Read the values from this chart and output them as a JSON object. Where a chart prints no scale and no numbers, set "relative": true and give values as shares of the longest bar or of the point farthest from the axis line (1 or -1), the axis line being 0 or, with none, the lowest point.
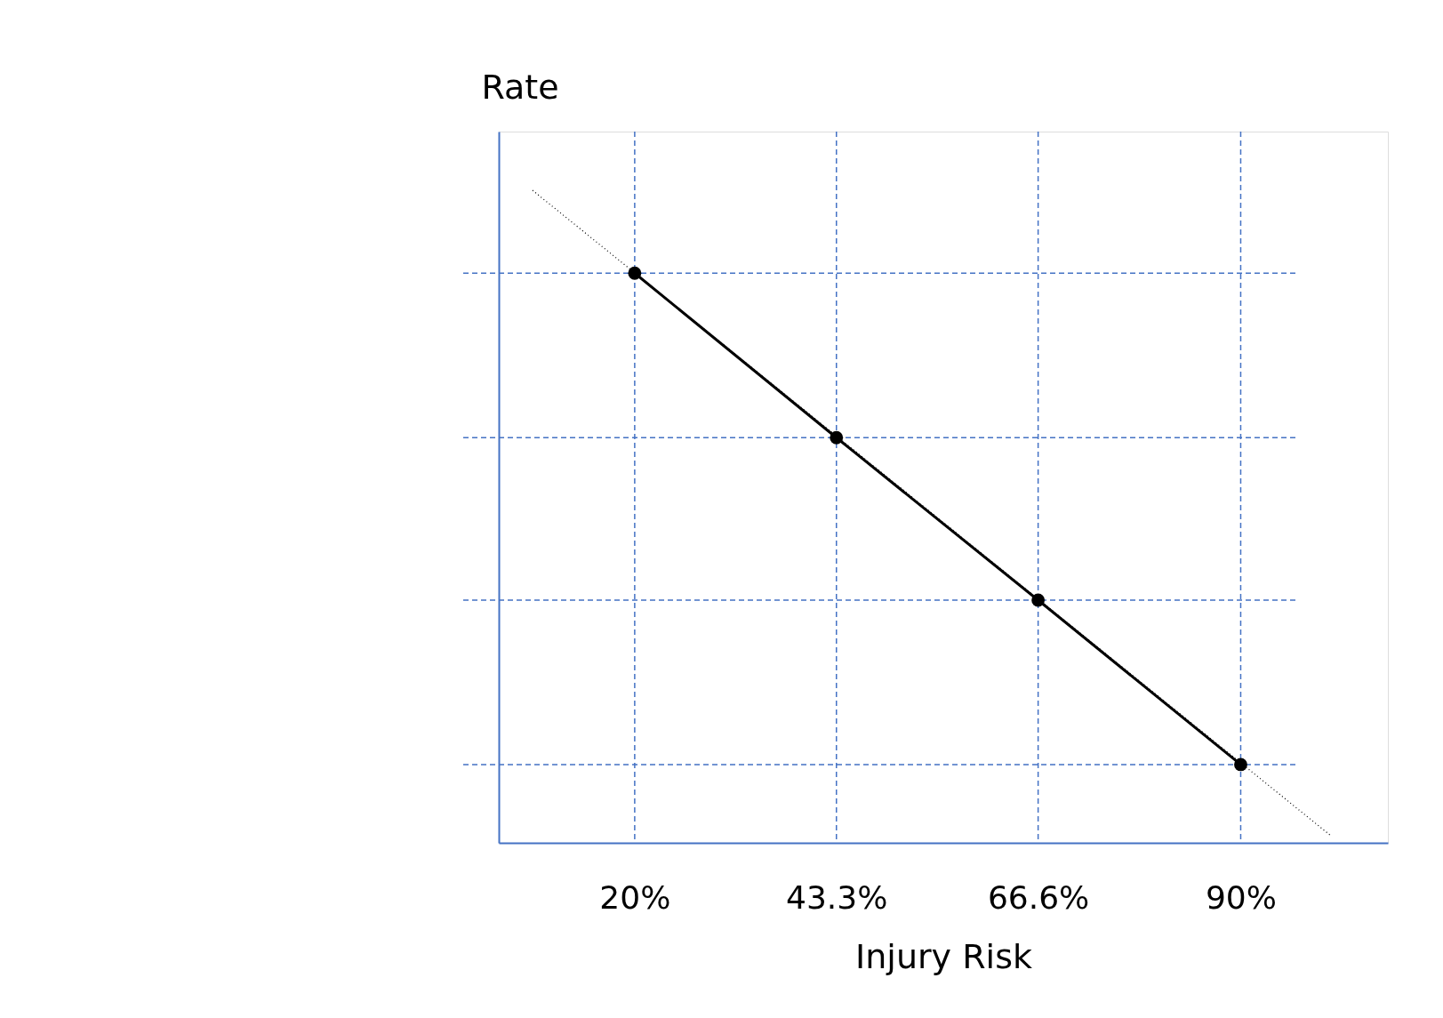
{
  "chart_data": {
    "type": "line",
    "xlabel": "Injury Risk",
    "ylabel": "Rate",
    "relative": true,
    "grid": false,
    "marker": "circle",
    "xlim": [
      4.3,
      107
    ],
    "xticks": [
      {
        "value": 20,
        "label": "20%"
      },
      {
        "value": 43.3,
        "label": "43.3%"
      },
      {
        "value": 66.6,
        "label": "66.6%"
      },
      {
        "value": 90,
        "label": "90%"
      }
    ],
    "series": [
      {
        "color": "#000000",
        "line_style": "solid",
        "x": [
          20,
          43.3,
          66.6,
          90
        ],
        "values": [
          0.873,
          0.621,
          0.372,
          0.12
        ]
      },
      {
        "color": "#000000",
        "line_style": "dotted",
        "marker": "none",
        "x": [
          8.2,
          100.5
        ],
        "values": [
          1,
          0.01
        ]
      }
    ],
    "ref_lines": [
      {
        "axis": "x",
        "value": 20,
        "color": "#4472c4",
        "line_style": "dashed"
      },
      {
        "axis": "x",
        "value": 43.3,
        "color": "#4472c4",
        "line_style": "dashed"
      },
      {
        "axis": "x",
        "value": 66.6,
        "color": "#4472c4",
        "line_style": "dashed"
      },
      {
        "axis": "x",
        "value": 90,
        "color": "#4472c4",
        "line_style": "dashed"
      },
      {
        "axis": "y",
        "value": 0.873,
        "color": "#4472c4",
        "line_style": "dashed"
      },
      {
        "axis": "y",
        "value": 0.621,
        "color": "#4472c4",
        "line_style": "dashed"
      },
      {
        "axis": "y",
        "value": 0.372,
        "color": "#4472c4",
        "line_style": "dashed"
      },
      {
        "axis": "y",
        "value": 0.12,
        "color": "#4472c4",
        "line_style": "dashed"
      }
    ]
  }
}
